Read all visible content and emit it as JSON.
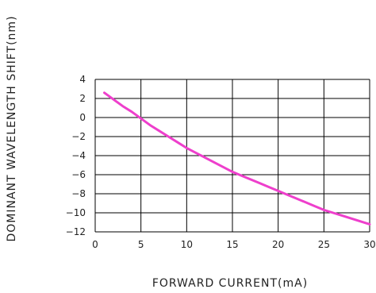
{
  "chart_data": {
    "type": "line",
    "xlabel": "FORWARD CURRENT(mA)",
    "ylabel": "DOMINANT WAVELENGTH SHIFT(nm)",
    "xlim": [
      0,
      30
    ],
    "ylim": [
      -12,
      4
    ],
    "x_ticks": [
      0,
      5,
      10,
      15,
      20,
      25,
      30
    ],
    "y_ticks": [
      4,
      2,
      0,
      -2,
      -4,
      -6,
      -8,
      -10,
      -12
    ],
    "grid": true,
    "colors": {
      "line": "#ee3fcc",
      "grid": "#000000"
    },
    "series": [
      {
        "x": [
          1,
          2,
          3,
          4,
          5,
          6,
          7,
          8,
          9,
          10,
          11,
          12,
          13,
          14,
          15,
          16,
          17,
          18,
          19,
          20,
          21,
          22,
          23,
          24,
          25,
          26,
          27,
          28,
          29,
          30
        ],
        "values": [
          2.6,
          1.9,
          1.2,
          0.6,
          -0.1,
          -0.8,
          -1.4,
          -2.0,
          -2.6,
          -3.2,
          -3.7,
          -4.2,
          -4.7,
          -5.2,
          -5.7,
          -6.1,
          -6.5,
          -6.9,
          -7.3,
          -7.7,
          -8.1,
          -8.5,
          -8.9,
          -9.3,
          -9.7,
          -10.0,
          -10.3,
          -10.6,
          -10.9,
          -11.2
        ]
      }
    ]
  }
}
